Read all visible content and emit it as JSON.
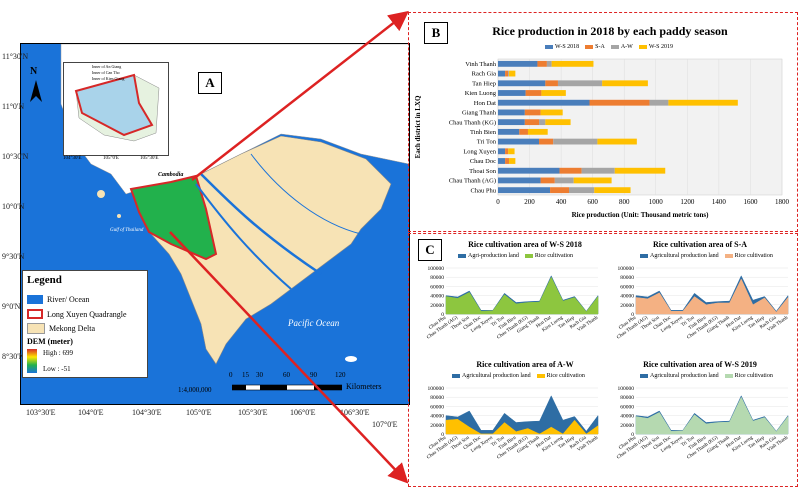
{
  "panels": {
    "a": "A",
    "b": "B",
    "c": "C"
  },
  "map": {
    "lat_labels": [
      "11°30'N",
      "11°0'N",
      "10°30'N",
      "10°0'N",
      "9°30'N",
      "9°0'N",
      "8°30'N"
    ],
    "lon_labels": [
      "103°30'E",
      "104°0'E",
      "104°30'E",
      "105°0'E",
      "105°30'E",
      "106°0'E",
      "106°30'E",
      "107°0'E"
    ],
    "north_label": "N",
    "place_labels": {
      "cambodia": "Cambodia",
      "gulf": "Gulf of Thailand",
      "pacific": "Pacific Ocean"
    },
    "scale_ratio": "1:4,000,000",
    "scale_ticks": [
      "0",
      "15",
      "30",
      "60",
      "90",
      "120"
    ],
    "scale_unit": "Kilometers",
    "inset_legend": [
      "Inner of An Giang",
      "Inner of Can Tho",
      "Inner of Kien Giang"
    ],
    "inset_lon": [
      "104°30'E",
      "105°0'E",
      "105°30'E"
    ],
    "colors": {
      "sea": "#1a73d9",
      "delta": "#f7e3b5",
      "lxq": "#22b14c",
      "border": "#d62828"
    }
  },
  "legend": {
    "title": "Legend",
    "items": [
      "River/ Ocean",
      "Long Xuyen Quadrangle",
      "Mekong Delta"
    ],
    "dem_title": "DEM (meter)",
    "dem_high": "High : 699",
    "dem_low": "Low : -51"
  },
  "chart_b": {
    "type": "bar",
    "title": "Rice production in 2018 by each paddy season",
    "xlabel": "Rice production (Unit: Thousand metric tons)",
    "ylabel": "Each district in LXQ",
    "xticks": [
      "0",
      "200",
      "400",
      "600",
      "800",
      "1000",
      "1200",
      "1400",
      "1600",
      "1800"
    ],
    "xlim": [
      0,
      1800
    ],
    "categories": [
      "Vinh Thanh",
      "Rach Gia",
      "Tan Hiep",
      "Kien Luong",
      "Hon Dat",
      "Giang Thanh",
      "Chau Thanh (KG)",
      "Tinh Bien",
      "Tri Ton",
      "Long Xuyen",
      "Chau Doc",
      "Thoai Son",
      "Chau Thanh (AG)",
      "Chau Phu"
    ],
    "series": [
      {
        "name": "W-S 2018",
        "color": "#4a7ebb",
        "values": [
          250,
          45,
          300,
          175,
          580,
          170,
          170,
          135,
          260,
          45,
          45,
          390,
          270,
          330
        ]
      },
      {
        "name": "S-A",
        "color": "#ed7d31",
        "values": [
          60,
          20,
          80,
          100,
          380,
          100,
          90,
          55,
          90,
          20,
          25,
          140,
          90,
          120
        ]
      },
      {
        "name": "A-W",
        "color": "#a5a5a5",
        "values": [
          30,
          5,
          280,
          0,
          120,
          0,
          40,
          0,
          280,
          0,
          0,
          210,
          120,
          160
        ]
      },
      {
        "name": "W-S 2019",
        "color": "#ffc000",
        "values": [
          265,
          40,
          290,
          155,
          440,
          140,
          160,
          125,
          250,
          40,
          40,
          320,
          240,
          230
        ]
      }
    ]
  },
  "chart_c": [
    {
      "type": "area",
      "title": "Rice cultivation area of W-S 2018",
      "legend": [
        "Agri-production land",
        "Rice cultivation"
      ],
      "colors": [
        "#2e6da4",
        "#8dc63f"
      ],
      "yticks": [
        "0",
        "20000",
        "40000",
        "60000",
        "80000",
        "100000"
      ],
      "ylim": [
        0,
        100000
      ],
      "categories": [
        "Chau Phu",
        "Chau Thanh (AG)",
        "Thoai Son",
        "Chau Doc",
        "Long Xuyen",
        "Tri Ton",
        "Tinh Bien",
        "Chau Thanh (KG)",
        "Giang Thanh",
        "Hon Dat",
        "Kien Luong",
        "Tan Hiep",
        "Rach Gia",
        "Vinh Thanh"
      ],
      "series": [
        {
          "name": "Agri-production land",
          "values": [
            40000,
            37000,
            50000,
            8000,
            8000,
            45000,
            25000,
            27000,
            28000,
            83000,
            30000,
            38000,
            6000,
            40000
          ]
        },
        {
          "name": "Rice cultivation",
          "values": [
            38000,
            34000,
            47000,
            6000,
            7000,
            42000,
            22000,
            25000,
            26000,
            80000,
            28000,
            36000,
            5000,
            38000
          ]
        }
      ]
    },
    {
      "type": "area",
      "title": "Rice cultivation area of S-A",
      "legend": [
        "Agricultural production land",
        "Rice cultivation"
      ],
      "colors": [
        "#2e6da4",
        "#f4b183"
      ],
      "yticks": [
        "0",
        "20000",
        "40000",
        "60000",
        "80000",
        "100000"
      ],
      "ylim": [
        0,
        100000
      ],
      "categories": [
        "Chau Phu",
        "Chau Thanh (AG)",
        "Thoai Son",
        "Chau Doc",
        "Long Xuyen",
        "Tri Ton",
        "Tinh Bien",
        "Chau Thanh (KG)",
        "Giang Thanh",
        "Hon Dat",
        "Kien Luong",
        "Tan Hiep",
        "Rach Gia",
        "Vinh Thanh"
      ],
      "series": [
        {
          "name": "Agricultural production land",
          "values": [
            40000,
            37000,
            50000,
            8000,
            8000,
            45000,
            25000,
            27000,
            28000,
            83000,
            30000,
            38000,
            6000,
            40000
          ]
        },
        {
          "name": "Rice cultivation",
          "values": [
            36000,
            33000,
            46000,
            6000,
            6000,
            38000,
            20000,
            24000,
            24000,
            76000,
            20000,
            35000,
            4000,
            36000
          ]
        }
      ]
    },
    {
      "type": "area",
      "title": "Rice cultivation area of A-W",
      "legend": [
        "Agricultural production land",
        "Rice cultivation"
      ],
      "colors": [
        "#2e6da4",
        "#ffc000"
      ],
      "yticks": [
        "0",
        "20000",
        "40000",
        "60000",
        "80000",
        "100000"
      ],
      "ylim": [
        0,
        100000
      ],
      "categories": [
        "Chau Phu",
        "Chau Thanh (AG)",
        "Thoai Son",
        "Chau Doc",
        "Long Xuyen",
        "Tri Ton",
        "Tinh Bien",
        "Chau Thanh (KG)",
        "Giang Thanh",
        "Hon Dat",
        "Kien Luong",
        "Tan Hiep",
        "Rach Gia",
        "Vinh Thanh"
      ],
      "series": [
        {
          "name": "Agricultural production land",
          "values": [
            40000,
            37000,
            50000,
            8000,
            8000,
            45000,
            25000,
            27000,
            28000,
            83000,
            30000,
            38000,
            6000,
            40000
          ]
        },
        {
          "name": "Rice cultivation",
          "values": [
            30000,
            32000,
            15000,
            0,
            0,
            25000,
            5000,
            12000,
            0,
            15000,
            0,
            30000,
            0,
            18000
          ]
        }
      ]
    },
    {
      "type": "area",
      "title": "Rice cultivation area of W-S 2019",
      "legend": [
        "Agricultural production land",
        "Rice cultivation"
      ],
      "colors": [
        "#2e6da4",
        "#b5d9b0"
      ],
      "yticks": [
        "0",
        "20000",
        "40000",
        "60000",
        "80000",
        "100000"
      ],
      "ylim": [
        0,
        100000
      ],
      "categories": [
        "Chau Phu",
        "Chau Thanh (AG)",
        "Thoai Son",
        "Chau Doc",
        "Long Xuyen",
        "Tri Ton",
        "Tinh Bien",
        "Chau Thanh (KG)",
        "Giang Thanh",
        "Hon Dat",
        "Kien Luong",
        "Tan Hiep",
        "Rach Gia",
        "Vinh Thanh"
      ],
      "series": [
        {
          "name": "Agricultural production land",
          "values": [
            40000,
            37000,
            50000,
            8000,
            8000,
            45000,
            25000,
            27000,
            28000,
            83000,
            30000,
            38000,
            6000,
            40000
          ]
        },
        {
          "name": "Rice cultivation",
          "values": [
            38000,
            34000,
            47000,
            6000,
            7000,
            42000,
            22000,
            25000,
            26000,
            80000,
            28000,
            36000,
            5000,
            38000
          ]
        }
      ]
    }
  ]
}
